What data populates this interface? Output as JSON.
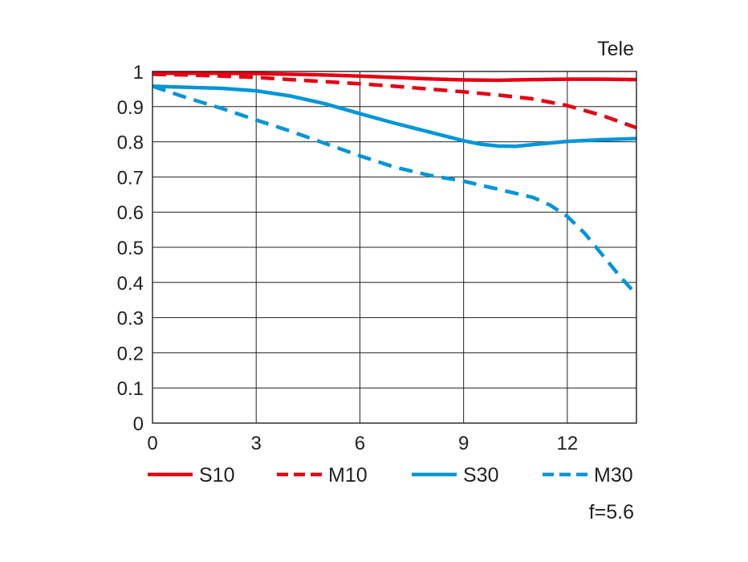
{
  "chart_data": {
    "type": "line",
    "title": "Tele",
    "annotation": "f=5.6",
    "xlabel": "",
    "ylabel": "",
    "xlim": [
      0,
      14
    ],
    "ylim": [
      0,
      1
    ],
    "x_ticks": [
      0,
      3,
      6,
      9,
      12
    ],
    "y_ticks": [
      0,
      0.1,
      0.2,
      0.3,
      0.4,
      0.5,
      0.6,
      0.7,
      0.8,
      0.9,
      1
    ],
    "y_tick_labels": [
      "0",
      "0.1",
      "0.2",
      "0.3",
      "0.4",
      "0.5",
      "0.6",
      "0.7",
      "0.8",
      "0.9",
      "1"
    ],
    "grid": true,
    "legend_position": "bottom",
    "series": [
      {
        "name": "S10",
        "color": "#e60012",
        "dash": "solid",
        "x": [
          0,
          1,
          2,
          3,
          4,
          5,
          6,
          7,
          8,
          9,
          10,
          11,
          12,
          13,
          14
        ],
        "y": [
          0.995,
          0.995,
          0.995,
          0.994,
          0.992,
          0.99,
          0.987,
          0.983,
          0.979,
          0.976,
          0.975,
          0.977,
          0.978,
          0.978,
          0.977
        ]
      },
      {
        "name": "M10",
        "color": "#e60012",
        "dash": "dashed",
        "x": [
          0,
          1,
          2,
          3,
          4,
          5,
          6,
          7,
          8,
          9,
          10,
          11,
          12,
          13,
          14
        ],
        "y": [
          0.992,
          0.99,
          0.987,
          0.983,
          0.977,
          0.971,
          0.965,
          0.958,
          0.95,
          0.942,
          0.933,
          0.922,
          0.903,
          0.875,
          0.84
        ]
      },
      {
        "name": "S30",
        "color": "#0095d9",
        "dash": "solid",
        "x": [
          0,
          1,
          2,
          3,
          4,
          5,
          6,
          7,
          8,
          9,
          9.5,
          10,
          10.5,
          11,
          12,
          13,
          14
        ],
        "y": [
          0.958,
          0.955,
          0.952,
          0.945,
          0.93,
          0.908,
          0.88,
          0.853,
          0.828,
          0.803,
          0.793,
          0.788,
          0.787,
          0.792,
          0.801,
          0.806,
          0.809
        ]
      },
      {
        "name": "M30",
        "color": "#0095d9",
        "dash": "dashed",
        "x": [
          0,
          1,
          2,
          3,
          4,
          5,
          6,
          7,
          8,
          9,
          10,
          11,
          11.5,
          12,
          12.5,
          13,
          13.5,
          14
        ],
        "y": [
          0.958,
          0.925,
          0.895,
          0.862,
          0.83,
          0.795,
          0.76,
          0.728,
          0.705,
          0.688,
          0.665,
          0.642,
          0.62,
          0.588,
          0.54,
          0.48,
          0.42,
          0.365
        ]
      }
    ]
  }
}
